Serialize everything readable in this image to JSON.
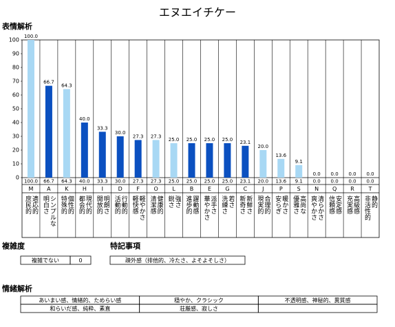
{
  "chart_data": {
    "type": "bar",
    "title": "エヌエイチケー",
    "section_title": "表情解析",
    "categories": [
      "M",
      "A",
      "K",
      "H",
      "I",
      "D",
      "F",
      "O",
      "L",
      "B",
      "E",
      "G",
      "C",
      "J",
      "P",
      "S",
      "N",
      "Q",
      "R",
      "T"
    ],
    "category_descriptions": [
      [
        "庶民的",
        "適応的"
      ],
      [
        "明白さ",
        "シンプルな"
      ],
      [
        "特殊的",
        "個性的"
      ],
      [
        "都会的",
        "現代的"
      ],
      [
        "開放的",
        "明朗さ"
      ],
      [
        "活動的",
        "行動的"
      ],
      [
        "軽快感",
        "軽やかさ"
      ],
      [
        "清潔感",
        "健康的"
      ],
      [
        "鋭さ",
        "強さ"
      ],
      [
        "進歩的",
        "躍動感"
      ],
      [
        "華やかさ",
        "派手さ"
      ],
      [
        "洗練さ",
        "若さ"
      ],
      [
        "新奇さ",
        "新鮮さ"
      ],
      [
        "現実的",
        "合理的"
      ],
      [
        "安らぎ",
        "暖かさ"
      ],
      [
        "優雅さ",
        "高尚な"
      ],
      [
        "爽やかさ",
        "清らかさ"
      ],
      [
        "信頼感",
        "安定感"
      ],
      [
        "充実感",
        "高級感"
      ],
      [
        "非活性的",
        "静的"
      ]
    ],
    "values": [
      100,
      66.7,
      64.3,
      40,
      33.3,
      30,
      27.3,
      27.3,
      25,
      25,
      25,
      25,
      23.1,
      20,
      13.6,
      9.1,
      0,
      0,
      0,
      0
    ],
    "value_labels": [
      "100.0",
      "66.7",
      "64.3",
      "40.0",
      "33.3",
      "30.0",
      "27.3",
      "27.3",
      "25.0",
      "25.0",
      "25.0",
      "25.0",
      "23.1",
      "20.0",
      "13.6",
      "9.1",
      "0.0",
      "0.0",
      "0.0",
      "0.0"
    ],
    "colors": [
      "#a8d8f4",
      "#0b50c0",
      "#a8d8f4",
      "#0b50c0",
      "#0b50c0",
      "#0b50c0",
      "#0b50c0",
      "#a8d8f4",
      "#a8d8f4",
      "#0b50c0",
      "#0b50c0",
      "#0b50c0",
      "#0b50c0",
      "#a8d8f4",
      "#a8d8f4",
      "#a8d8f4",
      "#a8d8f4",
      "#a8d8f4",
      "#a8d8f4",
      "#a8d8f4"
    ],
    "ylim": [
      0,
      100
    ],
    "yticks": [
      0,
      10,
      20,
      30,
      40,
      50,
      60,
      70,
      80,
      90,
      100
    ],
    "grid": false
  },
  "complexity": {
    "title": "複雑度",
    "label": "複雑でない",
    "value": 0
  },
  "notes": {
    "title": "特記事項",
    "items": [
      "疎外感（排他的、冷たさ、よそよそしさ）"
    ]
  },
  "emotion": {
    "title": "情緒解析",
    "rows": [
      [
        "あいまい感、情緒的、ためらい感",
        "穏やか、クラシック",
        "不透明感、神秘的、異質感"
      ],
      [
        "和らいだ感、純粋、素直",
        "荘厳感、寂しさ"
      ]
    ]
  }
}
